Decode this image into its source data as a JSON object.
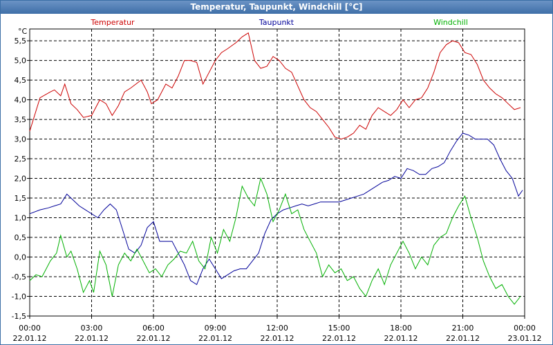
{
  "window": {
    "title": "Temperatur, Taupunkt, Windchill [°C]"
  },
  "chart_data": {
    "type": "line",
    "title": "Temperatur, Taupunkt, Windchill [°C]",
    "ylabel": "°C",
    "ylim": [
      -1.5,
      5.8
    ],
    "yticks": [
      -1.5,
      -1.0,
      -0.5,
      0.0,
      0.5,
      1.0,
      1.5,
      2.0,
      2.5,
      3.0,
      3.5,
      4.0,
      4.5,
      5.0,
      5.5
    ],
    "ytick_labels": [
      "-1,5",
      "-1,0",
      "-0,5",
      "0,0",
      "0,5",
      "1,0",
      "1,5",
      "2,0",
      "2,5",
      "3,0",
      "3,5",
      "4,0",
      "4,5",
      "5,0",
      "5,5"
    ],
    "xlim": [
      0,
      24
    ],
    "xticks": [
      0,
      3,
      6,
      9,
      12,
      15,
      18,
      21,
      24
    ],
    "xtick_times": [
      "00:00",
      "03:00",
      "06:00",
      "09:00",
      "12:00",
      "15:00",
      "18:00",
      "21:00",
      "00:00"
    ],
    "xtick_dates": [
      "22.01.12",
      "22.01.12",
      "22.01.12",
      "22.01.12",
      "22.01.12",
      "22.01.12",
      "22.01.12",
      "22.01.12",
      "23.01.12"
    ],
    "grid": true,
    "series": [
      {
        "name": "Temperatur",
        "color": "#cc0000",
        "x": [
          0,
          0.5,
          1.0,
          1.2,
          1.5,
          1.7,
          2.0,
          2.3,
          2.6,
          3.0,
          3.4,
          3.7,
          4.0,
          4.3,
          4.6,
          4.9,
          5.4,
          5.7,
          5.9,
          6.2,
          6.6,
          6.9,
          7.2,
          7.5,
          7.8,
          8.1,
          8.4,
          8.7,
          9.0,
          9.3,
          9.6,
          10.0,
          10.3,
          10.6,
          10.9,
          11.2,
          11.5,
          11.8,
          12.1,
          12.4,
          12.7,
          13.0,
          13.3,
          13.6,
          13.9,
          14.2,
          14.5,
          14.8,
          15.1,
          15.4,
          15.7,
          16.0,
          16.3,
          16.6,
          16.9,
          17.2,
          17.5,
          17.8,
          18.1,
          18.4,
          18.7,
          19.0,
          19.3,
          19.6,
          19.9,
          20.2,
          20.5,
          20.8,
          21.1,
          21.4,
          21.7,
          22.0,
          22.3,
          22.6,
          22.9,
          23.2,
          23.5,
          23.8
        ],
        "y": [
          3.2,
          4.05,
          4.2,
          4.25,
          4.1,
          4.4,
          3.9,
          3.75,
          3.55,
          3.6,
          4.0,
          3.9,
          3.6,
          3.85,
          4.2,
          4.3,
          4.5,
          4.2,
          3.9,
          4.0,
          4.4,
          4.3,
          4.6,
          5.0,
          5.0,
          4.95,
          4.4,
          4.7,
          5.0,
          5.2,
          5.3,
          5.45,
          5.6,
          5.7,
          5.0,
          4.8,
          4.85,
          5.1,
          5.0,
          4.8,
          4.7,
          4.35,
          4.0,
          3.8,
          3.7,
          3.5,
          3.3,
          3.05,
          3.0,
          3.05,
          3.15,
          3.35,
          3.25,
          3.6,
          3.8,
          3.7,
          3.6,
          3.75,
          4.0,
          3.8,
          4.0,
          4.05,
          4.3,
          4.7,
          5.2,
          5.4,
          5.5,
          5.45,
          5.2,
          5.15,
          4.9,
          4.5,
          4.3,
          4.15,
          4.05,
          3.9,
          3.75,
          3.8
        ]
      },
      {
        "name": "Taupunkt",
        "color": "#000099",
        "x": [
          0,
          0.5,
          0.9,
          1.2,
          1.5,
          1.8,
          2.1,
          2.4,
          2.7,
          3.0,
          3.3,
          3.6,
          3.9,
          4.2,
          4.5,
          4.8,
          5.1,
          5.4,
          5.7,
          6.0,
          6.3,
          6.6,
          6.9,
          7.2,
          7.5,
          7.8,
          8.1,
          8.4,
          8.7,
          9.0,
          9.3,
          9.6,
          9.9,
          10.2,
          10.5,
          10.8,
          11.1,
          11.4,
          11.7,
          12.0,
          12.3,
          12.6,
          12.9,
          13.2,
          13.5,
          13.8,
          14.1,
          14.4,
          14.7,
          15.0,
          15.3,
          15.6,
          15.9,
          16.2,
          16.5,
          16.8,
          17.1,
          17.4,
          17.7,
          18.0,
          18.3,
          18.6,
          18.9,
          19.2,
          19.5,
          19.8,
          20.1,
          20.4,
          20.7,
          21.0,
          21.3,
          21.6,
          21.9,
          22.2,
          22.5,
          22.8,
          23.1,
          23.4,
          23.7,
          23.9
        ],
        "y": [
          1.1,
          1.2,
          1.25,
          1.3,
          1.35,
          1.6,
          1.45,
          1.3,
          1.2,
          1.1,
          1.0,
          1.2,
          1.35,
          1.2,
          0.7,
          0.2,
          0.1,
          0.3,
          0.75,
          0.9,
          0.4,
          0.4,
          0.4,
          0.1,
          -0.2,
          -0.6,
          -0.7,
          -0.3,
          -0.05,
          -0.3,
          -0.55,
          -0.45,
          -0.35,
          -0.3,
          -0.3,
          -0.1,
          0.1,
          0.6,
          0.95,
          1.1,
          1.2,
          1.25,
          1.3,
          1.35,
          1.3,
          1.35,
          1.4,
          1.4,
          1.4,
          1.4,
          1.45,
          1.5,
          1.55,
          1.6,
          1.7,
          1.8,
          1.9,
          1.95,
          2.05,
          2.0,
          2.25,
          2.2,
          2.1,
          2.1,
          2.25,
          2.3,
          2.4,
          2.7,
          2.95,
          3.15,
          3.1,
          3.0,
          3.0,
          3.0,
          2.85,
          2.5,
          2.2,
          2.0,
          1.55,
          1.7
        ]
      },
      {
        "name": "Windchill",
        "color": "#00b000",
        "x": [
          0,
          0.3,
          0.6,
          1.0,
          1.3,
          1.5,
          1.8,
          2.0,
          2.3,
          2.6,
          2.9,
          3.1,
          3.4,
          3.7,
          4.0,
          4.3,
          4.6,
          4.9,
          5.2,
          5.5,
          5.8,
          6.1,
          6.4,
          6.7,
          7.0,
          7.3,
          7.6,
          7.9,
          8.2,
          8.5,
          8.8,
          9.1,
          9.4,
          9.7,
          10.0,
          10.3,
          10.6,
          10.9,
          11.2,
          11.5,
          11.8,
          12.1,
          12.4,
          12.7,
          13.0,
          13.3,
          13.6,
          13.9,
          14.2,
          14.5,
          14.8,
          15.1,
          15.4,
          15.7,
          16.0,
          16.3,
          16.6,
          16.9,
          17.2,
          17.5,
          17.8,
          18.1,
          18.4,
          18.7,
          19.0,
          19.3,
          19.6,
          19.9,
          20.2,
          20.5,
          20.8,
          21.1,
          21.4,
          21.7,
          22.0,
          22.3,
          22.6,
          22.9,
          23.2,
          23.5,
          23.8
        ],
        "y": [
          -0.6,
          -0.45,
          -0.5,
          -0.1,
          0.1,
          0.55,
          0.0,
          0.15,
          -0.3,
          -0.9,
          -0.6,
          -0.9,
          0.15,
          -0.2,
          -1.0,
          -0.2,
          0.1,
          -0.1,
          0.2,
          -0.1,
          -0.4,
          -0.3,
          -0.5,
          -0.2,
          -0.05,
          0.15,
          0.1,
          0.4,
          -0.1,
          -0.3,
          0.5,
          0.1,
          0.7,
          0.4,
          1.0,
          1.8,
          1.5,
          1.3,
          2.0,
          1.6,
          0.9,
          1.2,
          1.6,
          1.1,
          1.2,
          0.7,
          0.4,
          0.1,
          -0.5,
          -0.2,
          -0.4,
          -0.3,
          -0.6,
          -0.5,
          -0.8,
          -1.0,
          -0.6,
          -0.3,
          -0.7,
          -0.2,
          0.1,
          0.4,
          0.1,
          -0.3,
          0.0,
          -0.2,
          0.3,
          0.5,
          0.6,
          1.0,
          1.3,
          1.55,
          1.0,
          0.5,
          -0.1,
          -0.5,
          -0.8,
          -0.7,
          -1.0,
          -1.2,
          -1.0
        ]
      }
    ]
  }
}
